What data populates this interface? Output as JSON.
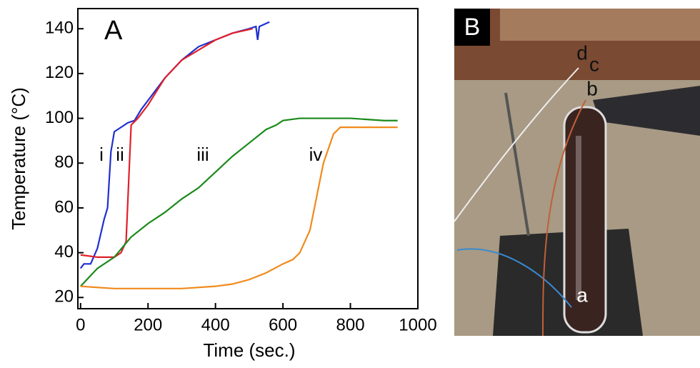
{
  "chart_data": {
    "type": "line",
    "panel_label": "A",
    "x_label": "Time (sec.)",
    "y_label": "Temperature (°C)",
    "xlim": [
      -8,
      1000
    ],
    "ylim": [
      15,
      149
    ],
    "xticks": [
      0,
      200,
      400,
      600,
      800,
      1000
    ],
    "yticks": [
      20,
      40,
      60,
      80,
      100,
      120,
      140
    ],
    "series": [
      {
        "name": "i",
        "color": "#1f2fd0",
        "x": [
          0,
          10,
          30,
          50,
          70,
          80,
          90,
          100,
          120,
          140,
          160,
          180,
          200,
          250,
          300,
          350,
          400,
          450,
          500,
          520,
          525,
          530,
          560
        ],
        "values": [
          33,
          35,
          35,
          42,
          55,
          60,
          85,
          94,
          96,
          98,
          99,
          104,
          108,
          118,
          126,
          132,
          135,
          138,
          140,
          141,
          135,
          141,
          143
        ]
      },
      {
        "name": "ii",
        "color": "#e0202a",
        "x": [
          0,
          50,
          100,
          120,
          135,
          145,
          150,
          170,
          200,
          250,
          300,
          400,
          450,
          510
        ],
        "values": [
          39,
          38,
          38,
          40,
          45,
          80,
          97,
          100,
          106,
          118,
          126,
          135,
          138,
          140
        ]
      },
      {
        "name": "iii",
        "color": "#1a8a1a",
        "x": [
          0,
          50,
          100,
          150,
          200,
          250,
          300,
          350,
          400,
          450,
          500,
          550,
          580,
          600,
          650,
          700,
          800,
          900,
          940
        ],
        "values": [
          25,
          33,
          38,
          47,
          53,
          58,
          64,
          69,
          76,
          83,
          89,
          95,
          97,
          99,
          100,
          100,
          100,
          99,
          99
        ]
      },
      {
        "name": "iv",
        "color": "#f08a1c",
        "x": [
          0,
          100,
          200,
          300,
          400,
          450,
          500,
          550,
          600,
          630,
          650,
          680,
          700,
          720,
          750,
          770,
          850,
          940
        ],
        "values": [
          25,
          24,
          24,
          24,
          25,
          26,
          28,
          31,
          35,
          37,
          40,
          50,
          65,
          80,
          93,
          96,
          96,
          96
        ]
      }
    ]
  },
  "photo": {
    "label": "B",
    "annotations": [
      "a",
      "b",
      "c",
      "d"
    ]
  }
}
